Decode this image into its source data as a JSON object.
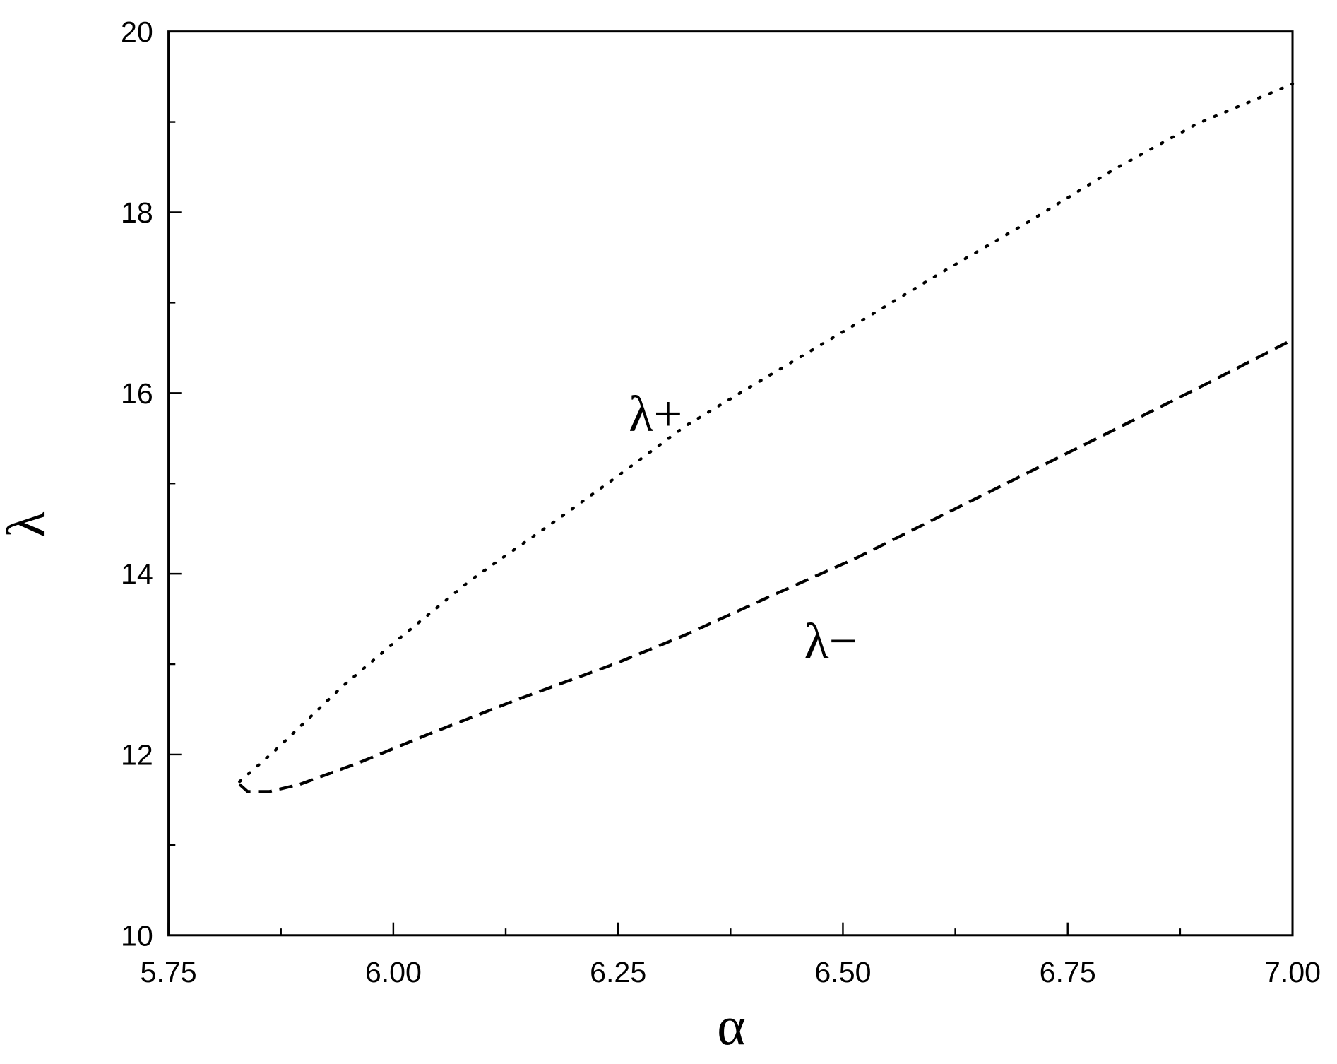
{
  "chart_data": {
    "type": "line",
    "x_label": "α",
    "y_label": "λ",
    "xlim": [
      5.75,
      7.0
    ],
    "ylim": [
      10,
      20
    ],
    "xticks": [
      5.75,
      {
        "value": 6.0,
        "label": "6.00"
      },
      6.25,
      {
        "value": 6.5,
        "label": "6.50"
      },
      6.75,
      {
        "value": 7.0,
        "label": "7.00"
      }
    ],
    "xminor": [
      5.875,
      6.125,
      6.375,
      6.625,
      6.875
    ],
    "yticks": [
      10,
      12,
      14,
      16,
      18,
      20
    ],
    "yminor": [
      11,
      13,
      15,
      17,
      19
    ],
    "series": [
      {
        "name": "λ+",
        "color": "#000000",
        "style": "dotted",
        "x": [
          5.829,
          5.867,
          5.943,
          6.0,
          6.086,
          6.181,
          6.248,
          6.324,
          6.419,
          6.514,
          6.609,
          6.704,
          6.799,
          6.894,
          7.0
        ],
        "values": [
          11.7,
          12.03,
          12.75,
          13.23,
          13.93,
          14.59,
          15.07,
          15.63,
          16.2,
          16.76,
          17.33,
          17.88,
          18.46,
          18.98,
          19.42
        ]
      },
      {
        "name": "λ−",
        "color": "#000000",
        "style": "dashed",
        "x": [
          5.829,
          5.838,
          5.862,
          5.896,
          5.962,
          6.038,
          6.133,
          6.248,
          6.324,
          6.419,
          6.514,
          6.609,
          6.704,
          6.799,
          6.894,
          7.0
        ],
        "values": [
          11.67,
          11.59,
          11.59,
          11.67,
          11.91,
          12.22,
          12.59,
          13.01,
          13.32,
          13.75,
          14.17,
          14.64,
          15.11,
          15.58,
          16.05,
          16.59
        ]
      }
    ]
  }
}
